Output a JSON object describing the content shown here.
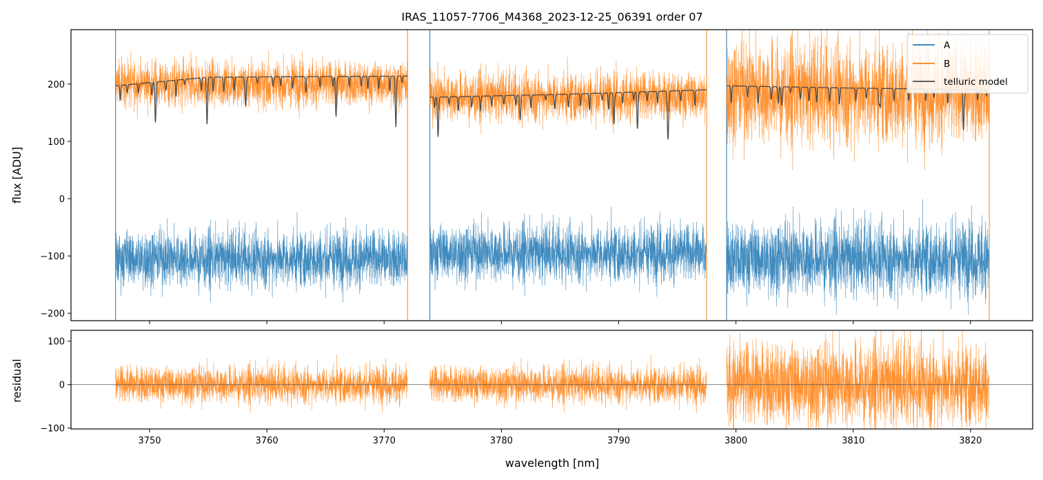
{
  "figure": {
    "title": "IRAS_11057-7706_M4368_2023-12-25_06391  order 07"
  },
  "colors": {
    "A": "#1f77b4",
    "B": "#ff7f0e",
    "telluric": "#4a4a4a",
    "zero_line": "#555555"
  },
  "chart_data": [
    {
      "type": "line",
      "title": "IRAS_11057-7706_M4368_2023-12-25_06391  order 07",
      "xlabel": "",
      "ylabel": "flux [ADU]",
      "xlim": [
        3743.3,
        3825.3
      ],
      "ylim": [
        -213,
        295
      ],
      "x_ticks": [
        3750,
        3760,
        3770,
        3780,
        3790,
        3800,
        3810,
        3820
      ],
      "y_ticks": [
        -200,
        -100,
        0,
        100,
        200
      ],
      "y_tick_labels": [
        "−200",
        "−100",
        "0",
        "100",
        "200"
      ],
      "legend_position": "top-right",
      "segments": [
        [
          3747.1,
          3772.0
        ],
        [
          3773.9,
          3797.5
        ],
        [
          3799.2,
          3821.6
        ]
      ],
      "series": [
        {
          "name": "A",
          "mean_level": [
            -105,
            -95,
            -105
          ],
          "noise_amplitude": [
            28,
            28,
            36
          ]
        },
        {
          "name": "B",
          "mean_level": [
            200,
            178,
            185
          ],
          "noise_amplitude": [
            22,
            24,
            50
          ]
        },
        {
          "name": "telluric model",
          "continuum_level": [
            [
              3747.1,
              197
            ],
            [
              3755,
              212
            ],
            [
              3772.0,
              214
            ],
            [
              3773.9,
              177
            ],
            [
              3785,
              182
            ],
            [
              3797.5,
              190
            ],
            [
              3799.2,
              197
            ],
            [
              3810,
              193
            ],
            [
              3821.6,
              190
            ]
          ],
          "absorption_lines": [
            [
              3750.5,
              133
            ],
            [
              3754.9,
              130
            ],
            [
              3758.2,
              163
            ],
            [
              3765.9,
              143
            ],
            [
              3771.0,
              125
            ],
            [
              3774.6,
              108
            ],
            [
              3781.6,
              137
            ],
            [
              3789.6,
              130
            ],
            [
              3791.6,
              122
            ],
            [
              3794.2,
              107
            ],
            [
              3803.9,
              163
            ],
            [
              3812.3,
              160
            ],
            [
              3819.4,
              120
            ]
          ]
        }
      ]
    },
    {
      "type": "line",
      "xlabel": "wavelength [nm]",
      "ylabel": "residual",
      "xlim": [
        3743.3,
        3825.3
      ],
      "ylim": [
        -102,
        125
      ],
      "x_ticks": [
        3750,
        3760,
        3770,
        3780,
        3790,
        3800,
        3810,
        3820
      ],
      "x_tick_labels": [
        "3750",
        "3760",
        "3770",
        "3780",
        "3790",
        "3800",
        "3810",
        "3820"
      ],
      "y_ticks": [
        -100,
        0,
        100
      ],
      "y_tick_labels": [
        "−100",
        "0",
        "100"
      ],
      "reference_line_y": 0,
      "series": [
        {
          "name": "B",
          "mean_level": [
            0,
            0,
            0
          ],
          "noise_amplitude": [
            24,
            24,
            55
          ]
        }
      ]
    }
  ]
}
